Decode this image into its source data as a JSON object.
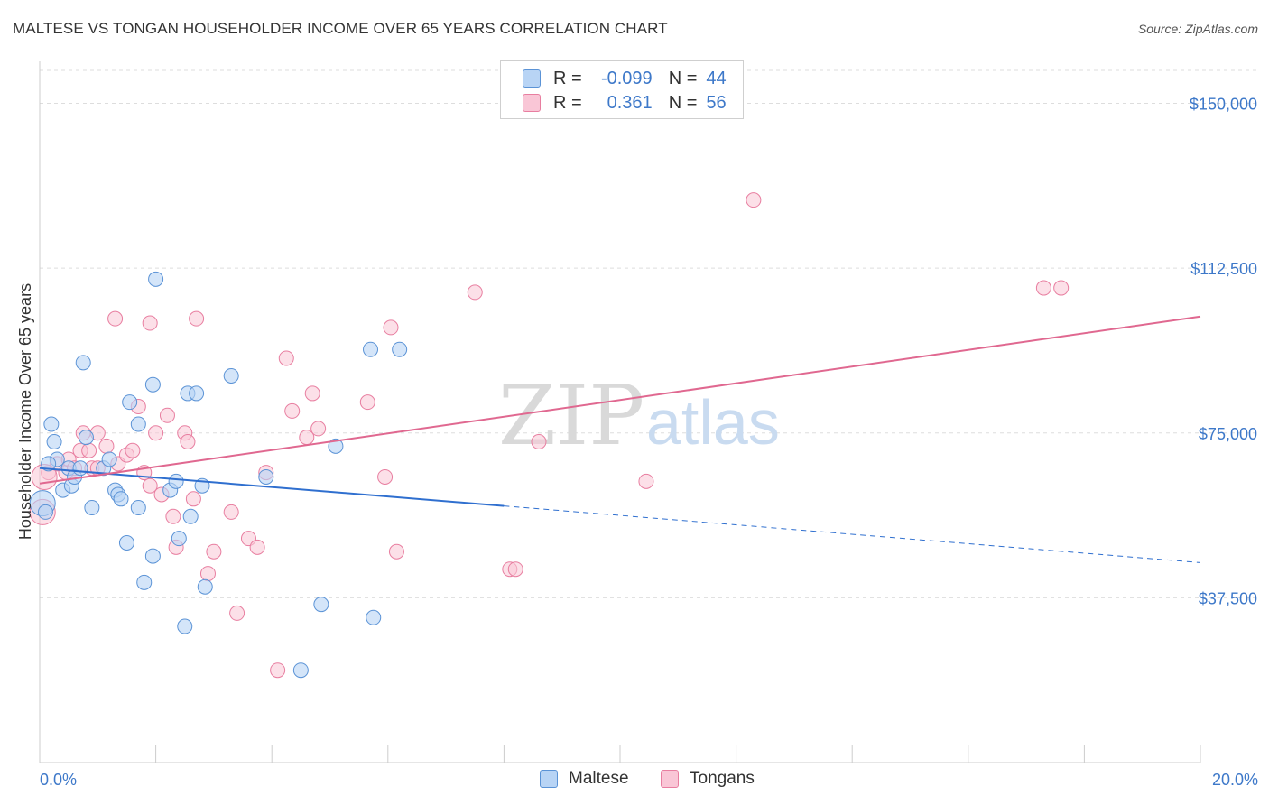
{
  "header": {
    "title": "MALTESE VS TONGAN HOUSEHOLDER INCOME OVER 65 YEARS CORRELATION CHART",
    "source": "Source: ZipAtlas.com"
  },
  "legend": {
    "rows": [
      {
        "r_label": "R =",
        "r_value": "-0.099",
        "n_label": "N =",
        "n_value": "44"
      },
      {
        "r_label": "R =",
        "r_value": "0.361",
        "n_label": "N =",
        "n_value": "56"
      }
    ]
  },
  "watermark": {
    "zip": "ZIP",
    "atlas": "atlas"
  },
  "colors": {
    "maltese_fill": "#b8d4f5",
    "maltese_stroke": "#5b93d6",
    "maltese_line": "#2f6fcf",
    "tongan_fill": "#f9c6d6",
    "tongan_stroke": "#e87ea0",
    "tongan_line": "#e06890",
    "grid": "#dddddd",
    "axis_text": "#3d78c9"
  },
  "chart_data": {
    "type": "scatter",
    "title": "MALTESE VS TONGAN HOUSEHOLDER INCOME OVER 65 YEARS CORRELATION CHART",
    "xlabel": "",
    "ylabel": "Householder Income Over 65 years",
    "xlim": [
      0,
      20
    ],
    "ylim": [
      0,
      157500
    ],
    "x_tick_labels": [
      "0.0%",
      "20.0%"
    ],
    "y_ticks": [
      37500,
      75000,
      112500,
      150000
    ],
    "y_tick_labels": [
      "$37,500",
      "$75,000",
      "$112,500",
      "$150,000"
    ],
    "grid": true,
    "legend_position": "bottom",
    "series": [
      {
        "name": "Maltese",
        "trend": {
          "x0": 0.0,
          "y0": 67000,
          "x_solid_end": 8.0,
          "x1": 20.0,
          "y1": 45500
        },
        "points": [
          [
            0.05,
            59000
          ],
          [
            0.1,
            57000
          ],
          [
            0.2,
            77000
          ],
          [
            0.3,
            69000
          ],
          [
            0.25,
            73000
          ],
          [
            0.4,
            62000
          ],
          [
            0.5,
            67000
          ],
          [
            0.55,
            63000
          ],
          [
            0.6,
            65000
          ],
          [
            0.7,
            67000
          ],
          [
            0.8,
            74000
          ],
          [
            0.9,
            58000
          ],
          [
            0.75,
            91000
          ],
          [
            1.1,
            67000
          ],
          [
            1.2,
            69000
          ],
          [
            1.3,
            62000
          ],
          [
            1.35,
            61000
          ],
          [
            1.4,
            60000
          ],
          [
            1.5,
            50000
          ],
          [
            1.55,
            82000
          ],
          [
            1.7,
            77000
          ],
          [
            1.7,
            58000
          ],
          [
            1.8,
            41000
          ],
          [
            1.95,
            86000
          ],
          [
            1.95,
            47000
          ],
          [
            2.0,
            110000
          ],
          [
            2.25,
            62000
          ],
          [
            2.35,
            64000
          ],
          [
            2.4,
            51000
          ],
          [
            2.5,
            31000
          ],
          [
            2.55,
            84000
          ],
          [
            2.6,
            56000
          ],
          [
            2.7,
            84000
          ],
          [
            2.8,
            63000
          ],
          [
            2.85,
            40000
          ],
          [
            3.3,
            88000
          ],
          [
            3.9,
            65000
          ],
          [
            4.5,
            21000
          ],
          [
            4.85,
            36000
          ],
          [
            5.1,
            72000
          ],
          [
            5.7,
            94000
          ],
          [
            5.75,
            33000
          ],
          [
            6.2,
            94000
          ],
          [
            0.15,
            68000
          ]
        ]
      },
      {
        "name": "Tongans",
        "trend": {
          "x0": 0.0,
          "y0": 63500,
          "x1": 20.0,
          "y1": 101500
        },
        "points": [
          [
            0.05,
            57000
          ],
          [
            0.15,
            66000
          ],
          [
            0.3,
            68000
          ],
          [
            0.45,
            66000
          ],
          [
            0.5,
            69000
          ],
          [
            0.7,
            71000
          ],
          [
            0.75,
            75000
          ],
          [
            0.85,
            71000
          ],
          [
            0.9,
            67000
          ],
          [
            1.0,
            75000
          ],
          [
            1.0,
            67000
          ],
          [
            1.15,
            72000
          ],
          [
            1.3,
            101000
          ],
          [
            1.35,
            68000
          ],
          [
            1.5,
            70000
          ],
          [
            1.6,
            71000
          ],
          [
            1.7,
            81000
          ],
          [
            1.8,
            66000
          ],
          [
            1.9,
            63000
          ],
          [
            1.9,
            100000
          ],
          [
            2.0,
            75000
          ],
          [
            2.1,
            61000
          ],
          [
            2.2,
            79000
          ],
          [
            2.3,
            56000
          ],
          [
            2.35,
            49000
          ],
          [
            2.5,
            75000
          ],
          [
            2.55,
            73000
          ],
          [
            2.65,
            60000
          ],
          [
            2.7,
            101000
          ],
          [
            2.9,
            43000
          ],
          [
            3.0,
            48000
          ],
          [
            3.3,
            57000
          ],
          [
            3.4,
            34000
          ],
          [
            3.6,
            51000
          ],
          [
            3.75,
            49000
          ],
          [
            3.9,
            66000
          ],
          [
            4.1,
            21000
          ],
          [
            4.25,
            92000
          ],
          [
            4.35,
            80000
          ],
          [
            4.6,
            74000
          ],
          [
            4.7,
            84000
          ],
          [
            4.8,
            76000
          ],
          [
            5.65,
            82000
          ],
          [
            5.95,
            65000
          ],
          [
            6.05,
            99000
          ],
          [
            6.15,
            48000
          ],
          [
            7.5,
            107000
          ],
          [
            8.1,
            44000
          ],
          [
            8.2,
            44000
          ],
          [
            8.6,
            73000
          ],
          [
            10.45,
            64000
          ],
          [
            12.3,
            128000
          ],
          [
            17.3,
            108000
          ],
          [
            17.6,
            108000
          ],
          [
            0.08,
            65000
          ],
          [
            0.6,
            67000
          ]
        ]
      }
    ]
  }
}
